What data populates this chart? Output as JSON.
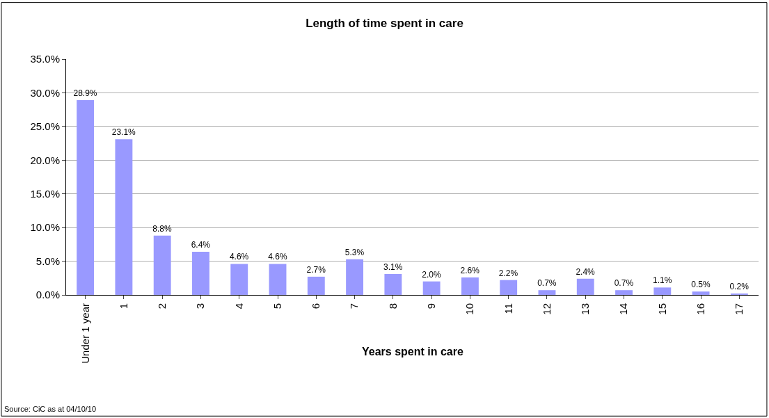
{
  "chart_data": {
    "type": "bar",
    "title": "Length of time spent in care",
    "xlabel": "Years spent in care",
    "categories": [
      "Under 1 year",
      "1",
      "2",
      "3",
      "4",
      "5",
      "6",
      "7",
      "8",
      "9",
      "10",
      "11",
      "12",
      "13",
      "14",
      "15",
      "16",
      "17"
    ],
    "values": [
      28.9,
      23.1,
      8.8,
      6.4,
      4.6,
      4.6,
      2.7,
      5.3,
      3.1,
      2.0,
      2.6,
      2.2,
      0.7,
      2.4,
      0.7,
      1.1,
      0.5,
      0.2
    ],
    "value_labels": [
      "28.9%",
      "23.1%",
      "8.8%",
      "6.4%",
      "4.6%",
      "4.6%",
      "2.7%",
      "5.3%",
      "3.1%",
      "2.0%",
      "2.6%",
      "2.2%",
      "0.7%",
      "2.4%",
      "0.7%",
      "1.1%",
      "0.5%",
      "0.2%"
    ],
    "color": "#9999ff",
    "ylim": [
      0,
      35
    ],
    "yticks": [
      {
        "value": 0,
        "label": "0.0%"
      },
      {
        "value": 5,
        "label": "5.0%"
      },
      {
        "value": 10,
        "label": "10.0%"
      },
      {
        "value": 15,
        "label": "15.0%"
      },
      {
        "value": 20,
        "label": "20.0%"
      },
      {
        "value": 25,
        "label": "25.0%"
      },
      {
        "value": 30,
        "label": "30.0%"
      },
      {
        "value": 35,
        "label": "35.0%"
      }
    ],
    "grid": "y",
    "legend": false,
    "annotations": [
      "Source: CiC as at 04/10/10"
    ]
  }
}
